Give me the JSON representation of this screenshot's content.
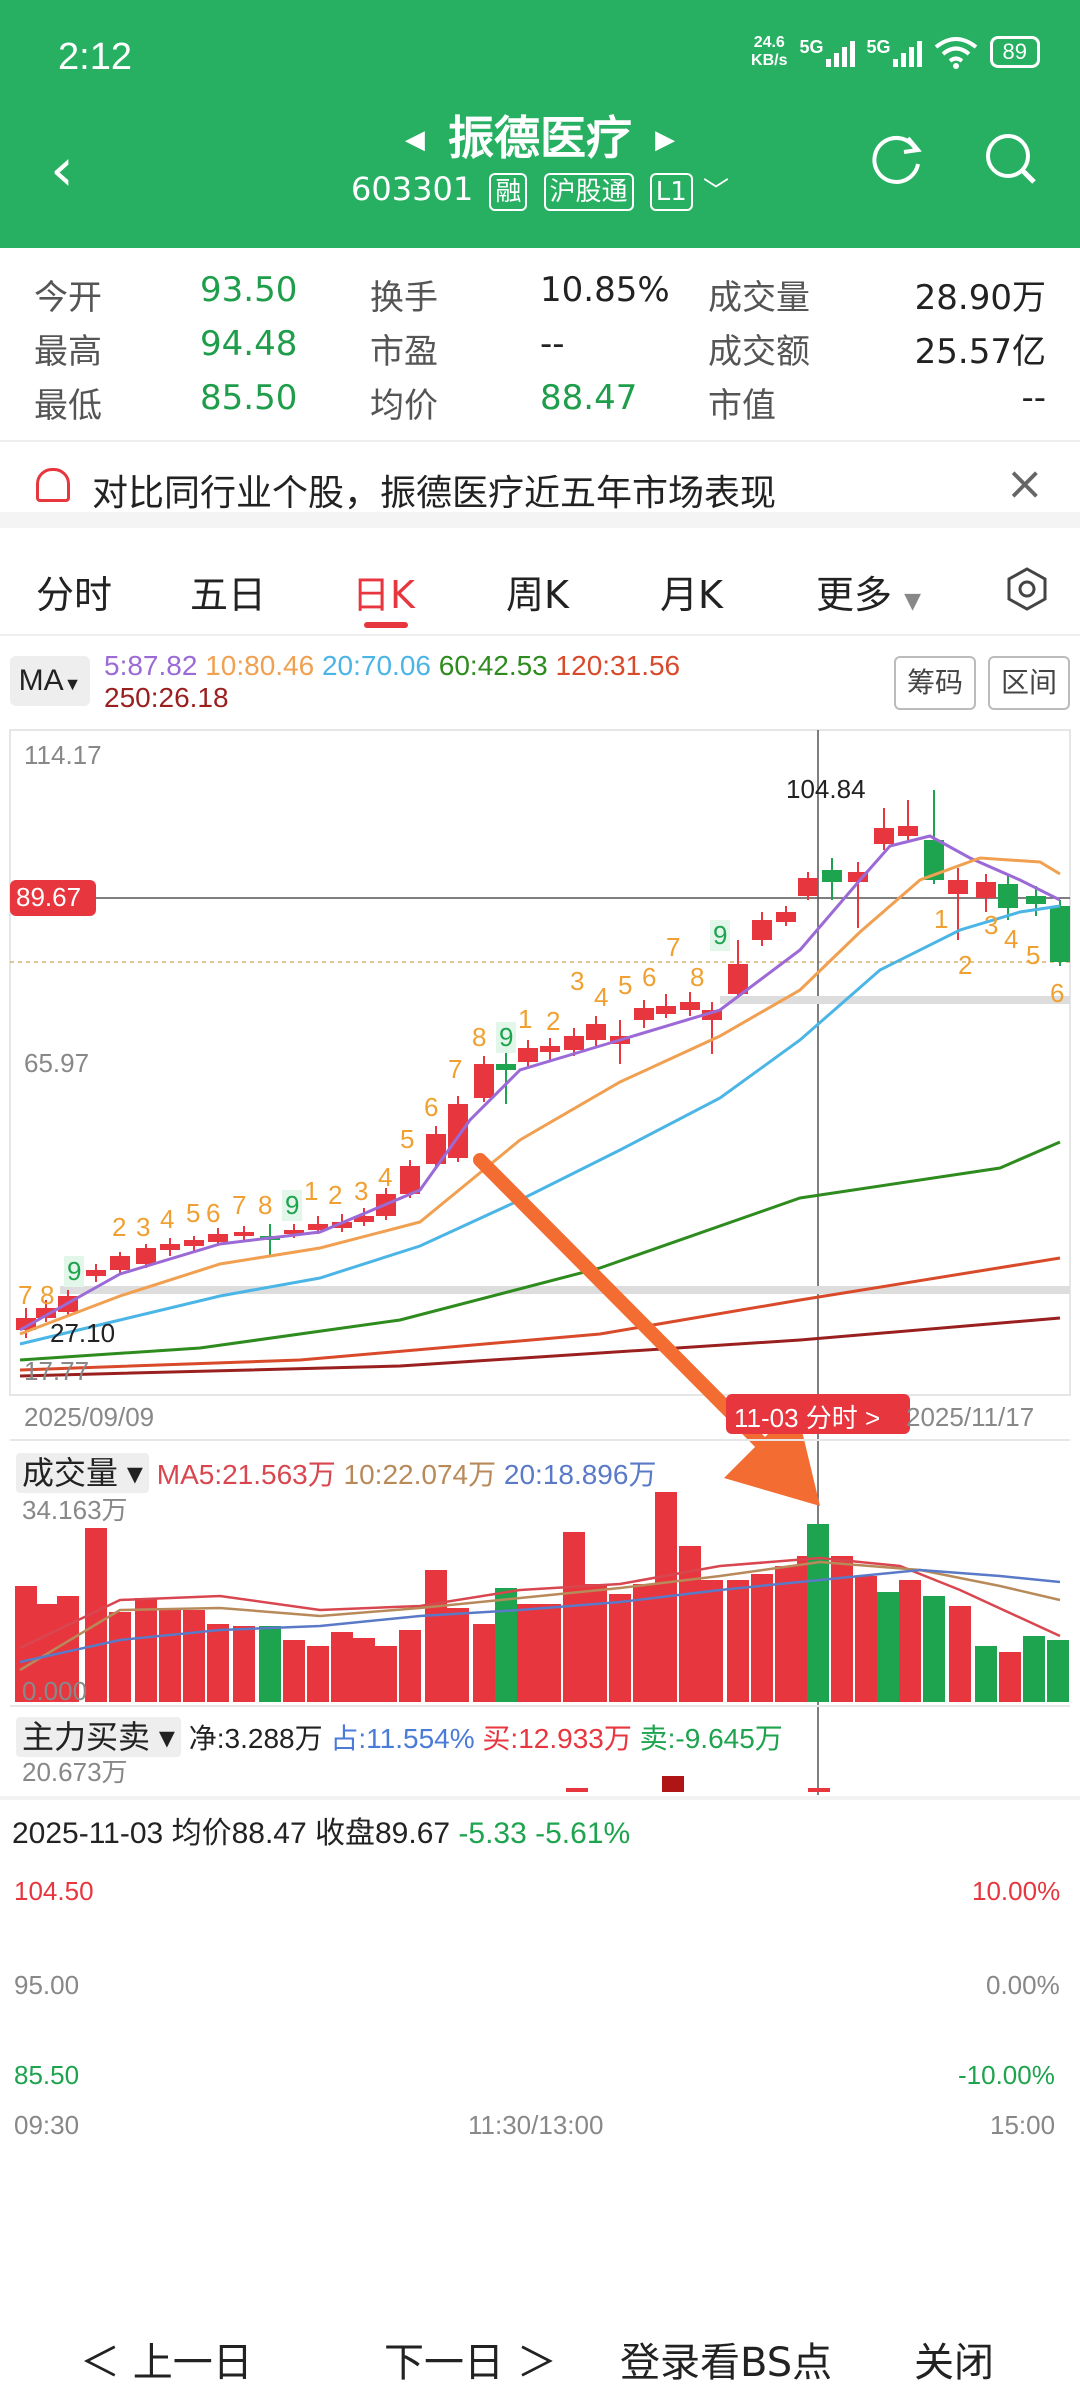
{
  "status": {
    "time": "2:12",
    "speed_value": "24.6",
    "speed_unit": "KB/s",
    "net1": "5G",
    "net2": "5G",
    "battery": "89"
  },
  "header": {
    "title": "振德医疗",
    "code": "603301",
    "tag_rong": "融",
    "tag_hgt": "沪股通",
    "tag_level": "L1"
  },
  "quote": {
    "open_label": "今开",
    "open_value": "93.50",
    "high_label": "最高",
    "high_value": "94.48",
    "low_label": "最低",
    "low_value": "85.50",
    "turnover_label": "换手",
    "turnover_value": "10.85%",
    "pe_label": "市盈",
    "pe_value": "--",
    "avg_label": "均价",
    "avg_value": "88.47",
    "vol_label": "成交量",
    "vol_value": "28.90万",
    "amount_label": "成交额",
    "amount_value": "25.57亿",
    "cap_label": "市值",
    "cap_value": "--"
  },
  "promo": {
    "text": "对比同行业个股，振德医疗近五年市场表现"
  },
  "tabs": [
    "分时",
    "五日",
    "日K",
    "周K",
    "月K",
    "更多"
  ],
  "ma_legend": {
    "btn": "MA",
    "ma5": "5:87.82",
    "ma10": "10:80.46",
    "ma20": "20:70.06",
    "ma60": "60:42.53",
    "ma120": "120:31.56",
    "ma250": "250:26.18",
    "chip_btn": "筹码",
    "range_btn": "区间",
    "colors": {
      "ma5": "#9b6ad6",
      "ma10": "#f0a050",
      "ma20": "#4bb5e6",
      "ma60": "#2e8b1e",
      "ma120": "#d84a2a",
      "ma250": "#9a1f1f"
    }
  },
  "kline": {
    "y_top": "114.17",
    "y_mid": "65.97",
    "y_low_label": "27.10",
    "y_bottom": "17.77",
    "cursor_price": "89.67",
    "peak_label": "104.84",
    "date_start": "2025/09/09",
    "date_end": "2025/11/17",
    "cursor_tag": "11-03 分时 >",
    "td_labels_upper": [
      "7",
      "8",
      "9",
      "2",
      "3",
      "4",
      "5",
      "6",
      "7",
      "8",
      "9",
      "1",
      "2",
      "3",
      "4",
      "5",
      "6",
      "7",
      "8",
      "9",
      "1",
      "2",
      "3",
      "4",
      "5",
      "6",
      "7",
      "8",
      "9"
    ],
    "td_labels_lower": [
      "1",
      "2",
      "3",
      "4",
      "5",
      "6"
    ]
  },
  "volume": {
    "btn": "成交量",
    "ma5": "MA5:21.563万",
    "ma10": "10:22.074万",
    "ma20": "20:18.896万",
    "max": "34.163万",
    "min": "0.000"
  },
  "mainforce": {
    "btn": "主力买卖",
    "net": "净:3.288万",
    "ratio": "占:11.554%",
    "buy": "买:12.933万",
    "sell": "卖:-9.645万",
    "max": "20.673万"
  },
  "intraday": {
    "date": "2025-11-03",
    "avg": "均价88.47",
    "close": "收盘89.67",
    "change": "-5.33",
    "pct": "-5.61%",
    "y_top": "104.50",
    "y_mid": "95.00",
    "y_low": "85.50",
    "pct_top": "10.00%",
    "pct_mid": "0.00%",
    "pct_low": "-10.00%",
    "t_start": "09:30",
    "t_mid": "11:30/13:00",
    "t_end": "15:00"
  },
  "bottom_bar": {
    "prev": "＜ 上一日",
    "next": "下一日 ＞",
    "login": "登录看BS点",
    "close": "关闭"
  }
}
